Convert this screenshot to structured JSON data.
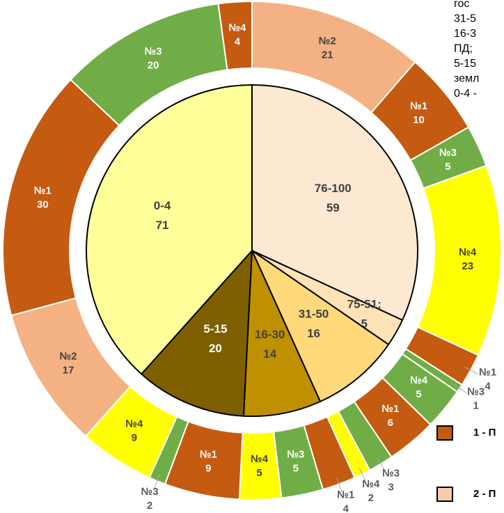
{
  "chart_data": {
    "type": "sunburst",
    "inner": {
      "categories": [
        "76-100",
        "75-51;",
        "31-50",
        "16-30",
        "5-15",
        "0-4"
      ],
      "values": [
        59,
        5,
        16,
        14,
        20,
        71
      ],
      "colors": [
        "#fde9d2",
        "#fde3b6",
        "#ffd97a",
        "#bf9000",
        "#7f6000",
        "#ffff99"
      ]
    },
    "outer": {
      "labels": [
        "№2",
        "№1",
        "№3",
        "№4",
        "№1",
        "№3",
        "№4",
        "№1",
        "№3",
        "№4",
        "№1",
        "№3",
        "№4",
        "№1",
        "№3",
        "№4",
        "№2",
        "№1",
        "№3",
        "№4"
      ],
      "values": [
        21,
        10,
        5,
        23,
        4,
        1,
        5,
        6,
        3,
        2,
        4,
        5,
        5,
        9,
        2,
        9,
        17,
        30,
        20,
        4
      ],
      "colors": [
        "#f4b183",
        "#c55a11",
        "#70ad47",
        "#ffff00",
        "#c55a11",
        "#70ad47",
        "#70ad47",
        "#c55a11",
        "#70ad47",
        "#ffff00",
        "#c55a11",
        "#70ad47",
        "#ffff00",
        "#c55a11",
        "#70ad47",
        "#ffff00",
        "#f4b183",
        "#c55a11",
        "#70ad47",
        "#c55a11"
      ]
    },
    "notes": [
      "гос",
      "31-5",
      "16-3",
      "ПД;",
      "5-15",
      "земл",
      "0-4 -"
    ],
    "legend": {
      "labels": [
        "1 - П",
        "2 - П"
      ],
      "colors": [
        "#c55a11",
        "#f8cbad"
      ]
    }
  }
}
